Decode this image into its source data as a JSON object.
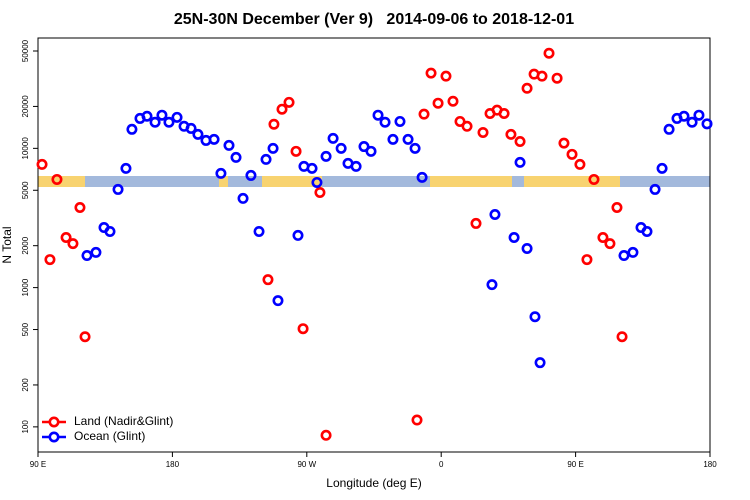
{
  "chart_data": {
    "type": "scatter",
    "title": "25N-30N December (Ver 9)   2014-09-06 to 2018-12-01",
    "x_label": "Longitude (deg E)",
    "y_label": "N Total",
    "xlim": [
      90,
      540
    ],
    "ylim": [
      66,
      62000
    ],
    "log_y": true,
    "legend": "bottomleft",
    "xticks": [
      {
        "value": 90,
        "label": "90 E"
      },
      {
        "value": 180,
        "label": "180"
      },
      {
        "value": 270,
        "label": "90 W"
      },
      {
        "value": 360,
        "label": "0"
      },
      {
        "value": 450,
        "label": "90 E"
      },
      {
        "value": 540,
        "label": "180"
      }
    ],
    "yticks": [
      100,
      200,
      500,
      1000,
      2000,
      5000,
      10000,
      20000,
      50000
    ],
    "series": [
      {
        "name": "Land (Nadir&Glint)",
        "color": "#ff0000",
        "x": [
          92.7,
          98,
          102.7,
          108.8,
          113.4,
          118.1,
          121.5,
          244,
          248,
          253.4,
          258.1,
          262.8,
          267.5,
          278.8,
          282.9,
          343.8,
          348.5,
          353.2,
          357.9,
          363.2,
          367.9,
          372.6,
          377.3,
          383.3,
          388,
          392.7,
          397.4,
          402.1,
          406.7,
          412.8,
          417.5,
          422.2,
          427.5,
          432.2,
          437.6,
          442.2,
          447.6,
          452.9,
          457.6,
          462.3,
          468.3,
          473,
          477.7,
          481.1
        ],
        "values": [
          7670,
          1590,
          5980,
          2290,
          2070,
          3760,
          444,
          1140,
          14900,
          19100,
          21400,
          9520,
          507,
          4820,
          87,
          112,
          17600,
          34700,
          21100,
          33000,
          21800,
          15600,
          14400,
          2890,
          13000,
          17800,
          18800,
          17800,
          12600,
          11200,
          27000,
          34100,
          33000,
          48200,
          31900,
          10900,
          9060,
          7670,
          1590,
          5980,
          2290,
          2070,
          3760,
          444
        ]
      },
      {
        "name": "Ocean (Glint)",
        "color": "#0000ff",
        "x": [
          122.8,
          128.8,
          134.2,
          138.2,
          143.6,
          148.9,
          152.9,
          158.3,
          163,
          168.4,
          173,
          177.7,
          183.1,
          187.8,
          192.5,
          197.1,
          202.5,
          207.9,
          212.5,
          217.9,
          222.6,
          227.3,
          232.6,
          238,
          242.7,
          247.4,
          250.7,
          264.1,
          268.1,
          273.5,
          276.8,
          282.9,
          287.6,
          293,
          297.6,
          303,
          308.3,
          313,
          317.7,
          322.4,
          327.7,
          332.4,
          337.8,
          342.5,
          347.2,
          394,
          396,
          408.8,
          412.8,
          417.5,
          422.8,
          426.2,
          482.4,
          488.4,
          493.8,
          497.8,
          503.2,
          507.9,
          512.6,
          517.9,
          522.6,
          528,
          532.6,
          538
        ],
        "values": [
          1700,
          1790,
          2700,
          2530,
          5070,
          7180,
          13700,
          16400,
          17000,
          15400,
          17300,
          15400,
          16700,
          14400,
          13900,
          12600,
          11400,
          11600,
          6610,
          10500,
          8610,
          4370,
          6390,
          2530,
          8330,
          10000,
          806,
          2370,
          7420,
          7180,
          5690,
          8760,
          11800,
          10000,
          7800,
          7420,
          10300,
          9520,
          17300,
          15400,
          11600,
          15600,
          11600,
          10000,
          6190,
          1050,
          3350,
          2290,
          7930,
          1910,
          618,
          289,
          1700,
          1790,
          2700,
          2530,
          5070,
          7180,
          13700,
          16400,
          17000,
          15400,
          17300,
          15000
        ]
      }
    ]
  }
}
